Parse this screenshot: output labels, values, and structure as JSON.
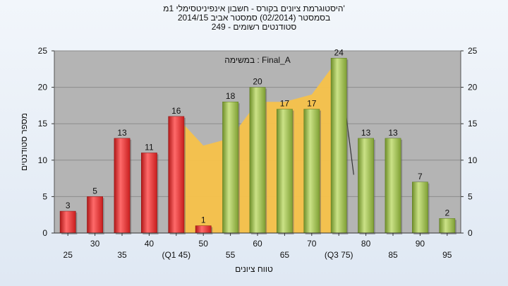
{
  "chart_data": {
    "type": "bar",
    "title_lines": [
      "'היסטוגרמת ציונים בקורס - חשבון אינפיניטסימלי 1מ",
      "בסמסטר  (02/2014)  סמסטר אביב 2014/15",
      "סטודנטים רשומים - 249"
    ],
    "annotation": "במשימה : Final_A",
    "ylabel": "מספר סטודנטים",
    "xlabel": "טווח ציונים",
    "ylim": [
      0,
      25
    ],
    "yticks": [
      0,
      5,
      10,
      15,
      20,
      25
    ],
    "grid": true,
    "categories": [
      "25",
      "30",
      "35",
      "40",
      "(Q1 45)",
      "50",
      "55",
      "60",
      "65",
      "70",
      "(Q3 75)",
      "80",
      "85",
      "90",
      "95"
    ],
    "values": [
      3,
      5,
      13,
      11,
      16,
      1,
      18,
      20,
      17,
      17,
      24,
      13,
      13,
      7,
      2
    ],
    "bar_colors": [
      "#d42a2a",
      "#d42a2a",
      "#d42a2a",
      "#d42a2a",
      "#d42a2a",
      "#d42a2a",
      "#8fb43e",
      "#8fb43e",
      "#8fb43e",
      "#8fb43e",
      "#8fb43e",
      "#8fb43e",
      "#8fb43e",
      "#8fb43e",
      "#8fb43e"
    ],
    "area_series": {
      "color": "#f7c24a",
      "x_index": [
        4,
        5,
        6,
        7,
        8,
        9,
        10,
        10
      ],
      "values": [
        16,
        12,
        13,
        18,
        18,
        19,
        24,
        0
      ]
    },
    "colors": {
      "plot_bg": "#b4b4b4",
      "grid": "#8c8c8c",
      "fail": "#d42a2a",
      "pass": "#8fb43e"
    }
  }
}
